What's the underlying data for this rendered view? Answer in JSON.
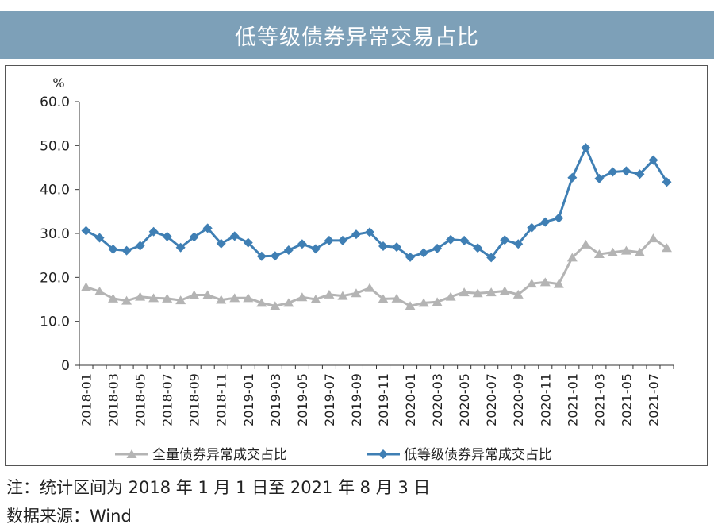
{
  "title": "低等级债券异常交易占比",
  "note": "注：统计区间为 2018 年 1 月 1 日至 2021 年 8 月 3 日",
  "source": "数据来源：Wind",
  "colors": {
    "series_all": "#b4b4b4",
    "series_low": "#3f7fb4",
    "title_bg": "#7da0b8"
  },
  "chart_data": {
    "type": "line",
    "ylabel": "%",
    "ylim": [
      0,
      60
    ],
    "yticks": [
      "0",
      "10.0",
      "20.0",
      "30.0",
      "40.0",
      "50.0",
      "60.0"
    ],
    "grid": false,
    "legend": "bottom",
    "x": [
      "2018-01",
      "2018-02",
      "2018-03",
      "2018-04",
      "2018-05",
      "2018-06",
      "2018-07",
      "2018-08",
      "2018-09",
      "2018-10",
      "2018-11",
      "2018-12",
      "2019-01",
      "2019-02",
      "2019-03",
      "2019-04",
      "2019-05",
      "2019-06",
      "2019-07",
      "2019-08",
      "2019-09",
      "2019-10",
      "2019-11",
      "2019-12",
      "2020-01",
      "2020-02",
      "2020-03",
      "2020-04",
      "2020-05",
      "2020-06",
      "2020-07",
      "2020-08",
      "2020-09",
      "2020-10",
      "2020-11",
      "2020-12",
      "2021-01",
      "2021-02",
      "2021-03",
      "2021-04",
      "2021-05",
      "2021-06",
      "2021-07",
      "2021-08"
    ],
    "x_tick_labels": [
      "2018-01",
      "2018-03",
      "2018-05",
      "2018-07",
      "2018-09",
      "2018-11",
      "2019-01",
      "2019-03",
      "2019-05",
      "2019-07",
      "2019-09",
      "2019-11",
      "2020-01",
      "2020-03",
      "2020-05",
      "2020-07",
      "2020-09",
      "2020-11",
      "2021-01",
      "2021-03",
      "2021-05",
      "2021-07"
    ],
    "series": [
      {
        "name": "全量债券异常成交占比",
        "marker": "triangle",
        "values": [
          17.8,
          16.8,
          15.2,
          14.7,
          15.6,
          15.3,
          15.2,
          14.8,
          16.0,
          16.0,
          14.9,
          15.3,
          15.3,
          14.2,
          13.5,
          14.2,
          15.5,
          15.0,
          16.1,
          15.8,
          16.4,
          17.6,
          15.1,
          15.2,
          13.5,
          14.2,
          14.4,
          15.6,
          16.6,
          16.4,
          16.6,
          16.9,
          16.1,
          18.6,
          18.9,
          18.5,
          24.5,
          27.5,
          25.3,
          25.7,
          26.1,
          25.7,
          28.9,
          26.7
        ]
      },
      {
        "name": "低等级债券异常成交占比",
        "marker": "diamond",
        "values": [
          30.6,
          29.0,
          26.4,
          26.1,
          27.2,
          30.4,
          29.3,
          26.8,
          29.2,
          31.2,
          27.7,
          29.4,
          27.9,
          24.8,
          24.9,
          26.2,
          27.6,
          26.5,
          28.4,
          28.4,
          29.8,
          30.3,
          27.1,
          26.9,
          24.6,
          25.6,
          26.6,
          28.6,
          28.4,
          26.7,
          24.5,
          28.5,
          27.6,
          31.3,
          32.6,
          33.5,
          42.7,
          49.5,
          42.5,
          44.0,
          44.2,
          43.5,
          46.7,
          41.7
        ]
      }
    ]
  }
}
